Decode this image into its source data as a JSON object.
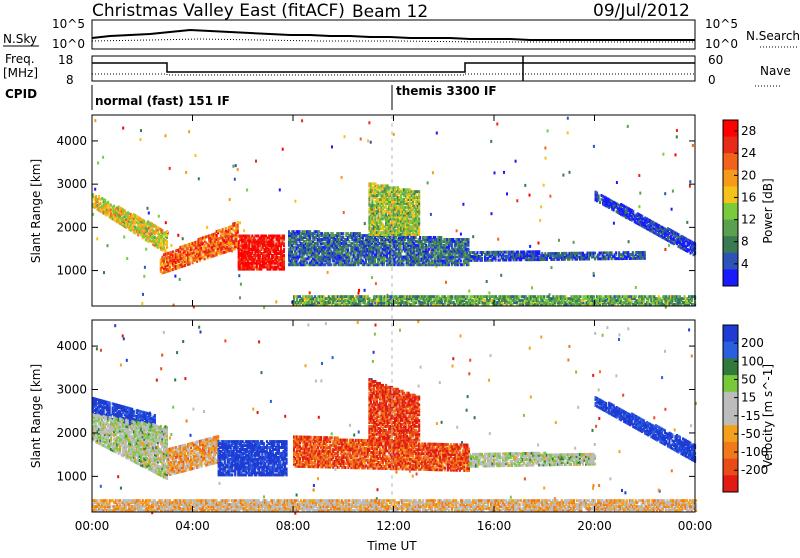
{
  "header": {
    "station": "Christmas Valley East (fitACF)",
    "beam": "Beam 12",
    "date": "09/Jul/2012"
  },
  "top_panels": {
    "nsky_label": "N.Sky",
    "nsearch_label": "N.Search",
    "nsky_ticks": [
      "10^5",
      "10^0"
    ],
    "nsearch_ticks": [
      "10^5",
      "10^0"
    ],
    "freq_label": "Freq.",
    "freq_unit": "[MHz]",
    "freq_ticks": [
      "18",
      "8"
    ],
    "nave_label": "Nave",
    "nave_ticks": [
      "60",
      "0"
    ],
    "cpid_label": "CPID",
    "cpid_modes": [
      {
        "start_hour": 0.0,
        "label": "normal (fast) 151 IF"
      },
      {
        "start_hour": 12.0,
        "label": "themis 3300 IF"
      }
    ]
  },
  "colors": {
    "power_scale": [
      "#1a1aff",
      "#2c53b9",
      "#3a7a53",
      "#59a04f",
      "#7acb3b",
      "#f5c21a",
      "#f79a1a",
      "#f2621a",
      "#e82a18",
      "#ff0000"
    ],
    "velocity_scale": [
      "#1e3cd4",
      "#2a5fe0",
      "#2f7a3c",
      "#78c83a",
      "#bcbcbc",
      "#bcbcbc",
      "#f3a01b",
      "#f07a19",
      "#ea4c18",
      "#e31a14"
    ]
  },
  "chart_data": [
    {
      "type": "heatmap",
      "title": "",
      "ylabel": "Slant Range [km]",
      "xlabel": "Time UT",
      "x_ticks": [
        "00:00",
        "04:00",
        "08:00",
        "12:00",
        "16:00",
        "20:00",
        "00:00"
      ],
      "y_ticks": [
        "1000",
        "2000",
        "3000",
        "4000"
      ],
      "xlim_hours": [
        0,
        24
      ],
      "ylim_km": [
        180,
        4600
      ],
      "colorbar": {
        "label": "Power [dB]",
        "ticks": [
          "4",
          "8",
          "12",
          "16",
          "20",
          "24",
          "28"
        ],
        "range": [
          0,
          30
        ]
      },
      "regions": [
        {
          "t0": 0.0,
          "t1": 3.0,
          "r_start0": 2450,
          "r_end0": 2750,
          "r_start1": 1350,
          "r_end1": 1850,
          "level": 0.55
        },
        {
          "t0": 2.7,
          "t1": 5.8,
          "r_start0": 900,
          "r_end0": 1300,
          "r_start1": 1500,
          "r_end1": 2100,
          "level": 0.75
        },
        {
          "t0": 5.8,
          "t1": 7.6,
          "r_start0": 1000,
          "r_end0": 1800,
          "r_start1": 1000,
          "r_end1": 1800,
          "level": 0.95
        },
        {
          "t0": 7.8,
          "t1": 15.0,
          "r_start0": 1100,
          "r_end0": 1900,
          "r_start1": 1100,
          "r_end1": 1700,
          "level": 0.2
        },
        {
          "t0": 11.0,
          "t1": 13.0,
          "r_start0": 1800,
          "r_end0": 3000,
          "r_start1": 1800,
          "r_end1": 2800,
          "level": 0.45
        },
        {
          "t0": 15.0,
          "t1": 22.0,
          "r_start0": 1200,
          "r_end0": 1400,
          "r_start1": 1250,
          "r_end1": 1400,
          "level": 0.15
        },
        {
          "t0": 20.0,
          "t1": 24.0,
          "r_start0": 2600,
          "r_end0": 2800,
          "r_start1": 1300,
          "r_end1": 1600,
          "level": 0.1
        },
        {
          "t0": 8.0,
          "t1": 24.0,
          "r_start0": 180,
          "r_end0": 400,
          "r_start1": 180,
          "r_end1": 400,
          "level": 0.35
        }
      ]
    },
    {
      "type": "heatmap",
      "title": "",
      "ylabel": "Slant Range [km]",
      "xlabel": "Time UT",
      "x_ticks": [
        "00:00",
        "04:00",
        "08:00",
        "12:00",
        "16:00",
        "20:00",
        "00:00"
      ],
      "y_ticks": [
        "1000",
        "2000",
        "3000",
        "4000"
      ],
      "xlim_hours": [
        0,
        24
      ],
      "ylim_km": [
        180,
        4600
      ],
      "colorbar": {
        "label": "Velocity [m s^-1]",
        "ticks": [
          "200",
          "100",
          "50",
          "15",
          "-15",
          "-50",
          "-100",
          "-200"
        ],
        "range": [
          -250,
          250
        ]
      },
      "regions": [
        {
          "t0": 0.0,
          "t1": 2.5,
          "r_start0": 2400,
          "r_end0": 2800,
          "r_start1": 2000,
          "r_end1": 2400,
          "level": 0.0
        },
        {
          "t0": 0.0,
          "t1": 3.0,
          "r_start0": 1800,
          "r_end0": 2400,
          "r_start1": 900,
          "r_end1": 2100,
          "level": 0.45
        },
        {
          "t0": 3.0,
          "t1": 5.0,
          "r_start0": 1000,
          "r_end0": 1600,
          "r_start1": 1300,
          "r_end1": 1900,
          "level": 0.65
        },
        {
          "t0": 5.0,
          "t1": 7.7,
          "r_start0": 1000,
          "r_end0": 1800,
          "r_start1": 1000,
          "r_end1": 1800,
          "level": 0.0
        },
        {
          "t0": 8.0,
          "t1": 15.0,
          "r_start0": 1200,
          "r_end0": 1900,
          "r_start1": 1100,
          "r_end1": 1700,
          "level": 0.85
        },
        {
          "t0": 11.0,
          "t1": 13.0,
          "r_start0": 1800,
          "r_end0": 3200,
          "r_start1": 1800,
          "r_end1": 2800,
          "level": 0.9
        },
        {
          "t0": 15.0,
          "t1": 20.0,
          "r_start0": 1200,
          "r_end0": 1500,
          "r_start1": 1250,
          "r_end1": 1500,
          "level": 0.45
        },
        {
          "t0": 20.0,
          "t1": 24.0,
          "r_start0": 2600,
          "r_end0": 2800,
          "r_start1": 1300,
          "r_end1": 1700,
          "level": 0.0
        },
        {
          "t0": 0.0,
          "t1": 24.0,
          "r_start0": 180,
          "r_end0": 450,
          "r_start1": 180,
          "r_end1": 450,
          "level": 0.6
        }
      ]
    }
  ]
}
